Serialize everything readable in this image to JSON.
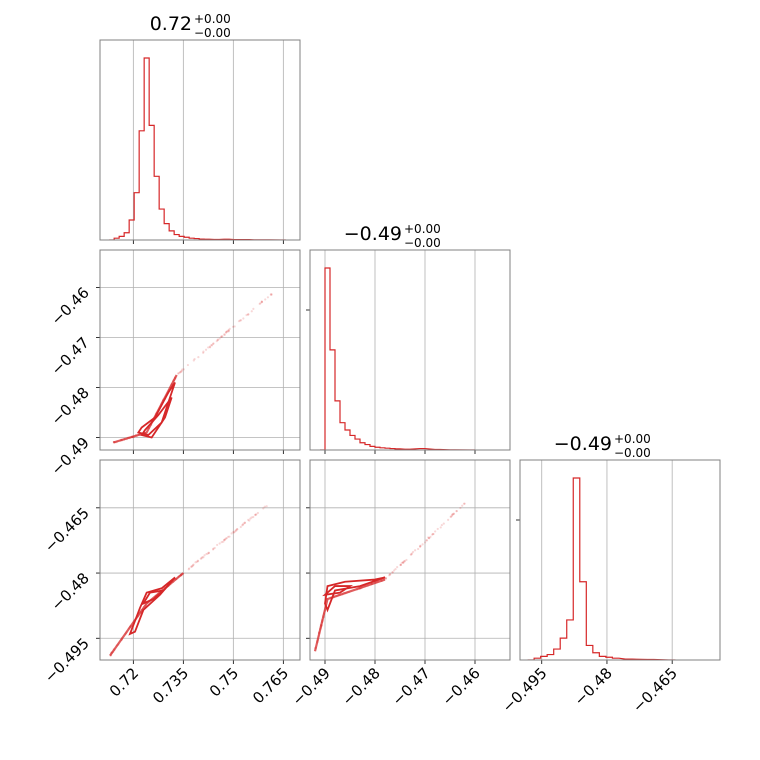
{
  "chart_data": [
    {
      "type": "histogram",
      "panel": "row1-col1",
      "title": {
        "value": "0.72",
        "upper": "+0.00",
        "lower": "−0.00"
      },
      "xlim": [
        0.71,
        0.77
      ],
      "xticks": [
        0.72,
        0.735,
        0.75,
        0.765
      ],
      "bins": [
        [
          0.7135,
          0.0
        ],
        [
          0.715,
          0.01
        ],
        [
          0.7165,
          0.02
        ],
        [
          0.718,
          0.04
        ],
        [
          0.7195,
          0.11
        ],
        [
          0.721,
          0.26
        ],
        [
          0.7225,
          0.6
        ],
        [
          0.724,
          1.0
        ],
        [
          0.7255,
          0.63
        ],
        [
          0.727,
          0.35
        ],
        [
          0.7285,
          0.17
        ],
        [
          0.73,
          0.09
        ],
        [
          0.7315,
          0.05
        ],
        [
          0.733,
          0.03
        ],
        [
          0.7345,
          0.02
        ],
        [
          0.736,
          0.015
        ],
        [
          0.7375,
          0.01
        ],
        [
          0.739,
          0.008
        ],
        [
          0.7405,
          0.005
        ],
        [
          0.742,
          0.004
        ],
        [
          0.745,
          0.003
        ],
        [
          0.748,
          0.004
        ],
        [
          0.751,
          0.002
        ],
        [
          0.754,
          0.002
        ],
        [
          0.757,
          0.001
        ],
        [
          0.76,
          0.001
        ],
        [
          0.765,
          0.0
        ]
      ],
      "color": "#d62728"
    },
    {
      "type": "histogram",
      "panel": "row2-col2",
      "title": {
        "value": "−0.49",
        "upper": "+0.00",
        "lower": "−0.00"
      },
      "xlim": [
        -0.493,
        -0.453
      ],
      "xticks": [
        -0.49,
        -0.48,
        -0.47,
        -0.46
      ],
      "bins": [
        [
          -0.4905,
          0.0
        ],
        [
          -0.4895,
          1.0
        ],
        [
          -0.4885,
          0.55
        ],
        [
          -0.4875,
          0.27
        ],
        [
          -0.4865,
          0.15
        ],
        [
          -0.4855,
          0.11
        ],
        [
          -0.4845,
          0.08
        ],
        [
          -0.4835,
          0.06
        ],
        [
          -0.4825,
          0.04
        ],
        [
          -0.4815,
          0.03
        ],
        [
          -0.4805,
          0.02
        ],
        [
          -0.4795,
          0.015
        ],
        [
          -0.4785,
          0.012
        ],
        [
          -0.4775,
          0.01
        ],
        [
          -0.4765,
          0.008
        ],
        [
          -0.4755,
          0.006
        ],
        [
          -0.4735,
          0.004
        ],
        [
          -0.4705,
          0.008
        ],
        [
          -0.4675,
          0.003
        ],
        [
          -0.4645,
          0.001
        ],
        [
          -0.4605,
          0.0
        ]
      ],
      "color": "#d62728"
    },
    {
      "type": "histogram",
      "panel": "row3-col3",
      "title": {
        "value": "−0.49",
        "upper": "+0.00",
        "lower": "−0.00"
      },
      "xlim": [
        -0.5,
        -0.454
      ],
      "xticks": [
        -0.495,
        -0.48,
        -0.465
      ],
      "bins": [
        [
          -0.4975,
          0.0
        ],
        [
          -0.496,
          0.01
        ],
        [
          -0.4945,
          0.02
        ],
        [
          -0.493,
          0.03
        ],
        [
          -0.4915,
          0.06
        ],
        [
          -0.49,
          0.12
        ],
        [
          -0.4885,
          0.22
        ],
        [
          -0.487,
          1.0
        ],
        [
          -0.4855,
          0.43
        ],
        [
          -0.484,
          0.08
        ],
        [
          -0.4825,
          0.04
        ],
        [
          -0.481,
          0.02
        ],
        [
          -0.4795,
          0.015
        ],
        [
          -0.478,
          0.01
        ],
        [
          -0.475,
          0.005
        ],
        [
          -0.47,
          0.003
        ],
        [
          -0.465,
          0.0
        ]
      ],
      "color": "#d62728"
    },
    {
      "type": "scatter",
      "panel": "row2-col1",
      "xlim": [
        0.71,
        0.77
      ],
      "ylim": [
        -0.4925,
        -0.4525
      ],
      "xticks": [
        0.72,
        0.735,
        0.75,
        0.765
      ],
      "yticks": [
        -0.46,
        -0.47,
        -0.48,
        -0.49
      ],
      "trend": [
        [
          0.714,
          -0.491
        ],
        [
          0.724,
          -0.489
        ],
        [
          0.733,
          -0.4775
        ],
        [
          0.762,
          -0.461
        ]
      ],
      "core_contours": [
        [
          [
            0.7215,
            -0.489
          ],
          [
            0.7245,
            -0.4895
          ],
          [
            0.7285,
            -0.487
          ],
          [
            0.7325,
            -0.479
          ],
          [
            0.7305,
            -0.481
          ],
          [
            0.7265,
            -0.486
          ],
          [
            0.7225,
            -0.488
          ]
        ],
        [
          [
            0.7225,
            -0.4895
          ],
          [
            0.7255,
            -0.49
          ],
          [
            0.7295,
            -0.486
          ],
          [
            0.7315,
            -0.482
          ],
          [
            0.7275,
            -0.4855
          ],
          [
            0.7235,
            -0.4885
          ]
        ]
      ],
      "color": "#d62728"
    },
    {
      "type": "scatter",
      "panel": "row3-col1",
      "xlim": [
        0.71,
        0.77
      ],
      "ylim": [
        -0.5,
        -0.454
      ],
      "xticks": [
        0.72,
        0.735,
        0.75,
        0.765
      ],
      "yticks": [
        -0.465,
        -0.48,
        -0.495
      ],
      "trend": [
        [
          0.713,
          -0.499
        ],
        [
          0.724,
          -0.487
        ],
        [
          0.735,
          -0.48
        ],
        [
          0.76,
          -0.4645
        ]
      ],
      "core_contours": [
        [
          [
            0.719,
            -0.494
          ],
          [
            0.722,
            -0.488
          ],
          [
            0.724,
            -0.4845
          ],
          [
            0.7285,
            -0.4835
          ],
          [
            0.7325,
            -0.481
          ],
          [
            0.728,
            -0.485
          ],
          [
            0.723,
            -0.4885
          ],
          [
            0.7205,
            -0.4935
          ]
        ],
        [
          [
            0.723,
            -0.487
          ],
          [
            0.725,
            -0.4845
          ],
          [
            0.729,
            -0.484
          ],
          [
            0.726,
            -0.486
          ]
        ]
      ],
      "color": "#d62728"
    },
    {
      "type": "scatter",
      "panel": "row3-col2",
      "xlim": [
        -0.493,
        -0.453
      ],
      "ylim": [
        -0.5,
        -0.454
      ],
      "xticks": [
        -0.49,
        -0.48,
        -0.47,
        -0.46
      ],
      "yticks": [
        -0.465,
        -0.48,
        -0.495
      ],
      "trend": [
        [
          -0.492,
          -0.498
        ],
        [
          -0.4895,
          -0.486
        ],
        [
          -0.478,
          -0.4815
        ],
        [
          -0.462,
          -0.464
        ]
      ],
      "core_contours": [
        [
          [
            -0.49,
            -0.487
          ],
          [
            -0.4895,
            -0.483
          ],
          [
            -0.486,
            -0.482
          ],
          [
            -0.48,
            -0.4815
          ],
          [
            -0.478,
            -0.481
          ],
          [
            -0.483,
            -0.483
          ],
          [
            -0.488,
            -0.484
          ],
          [
            -0.4895,
            -0.4885
          ]
        ],
        [
          [
            -0.49,
            -0.485
          ],
          [
            -0.488,
            -0.483
          ],
          [
            -0.485,
            -0.483
          ],
          [
            -0.487,
            -0.4845
          ]
        ]
      ],
      "color": "#d62728"
    }
  ]
}
